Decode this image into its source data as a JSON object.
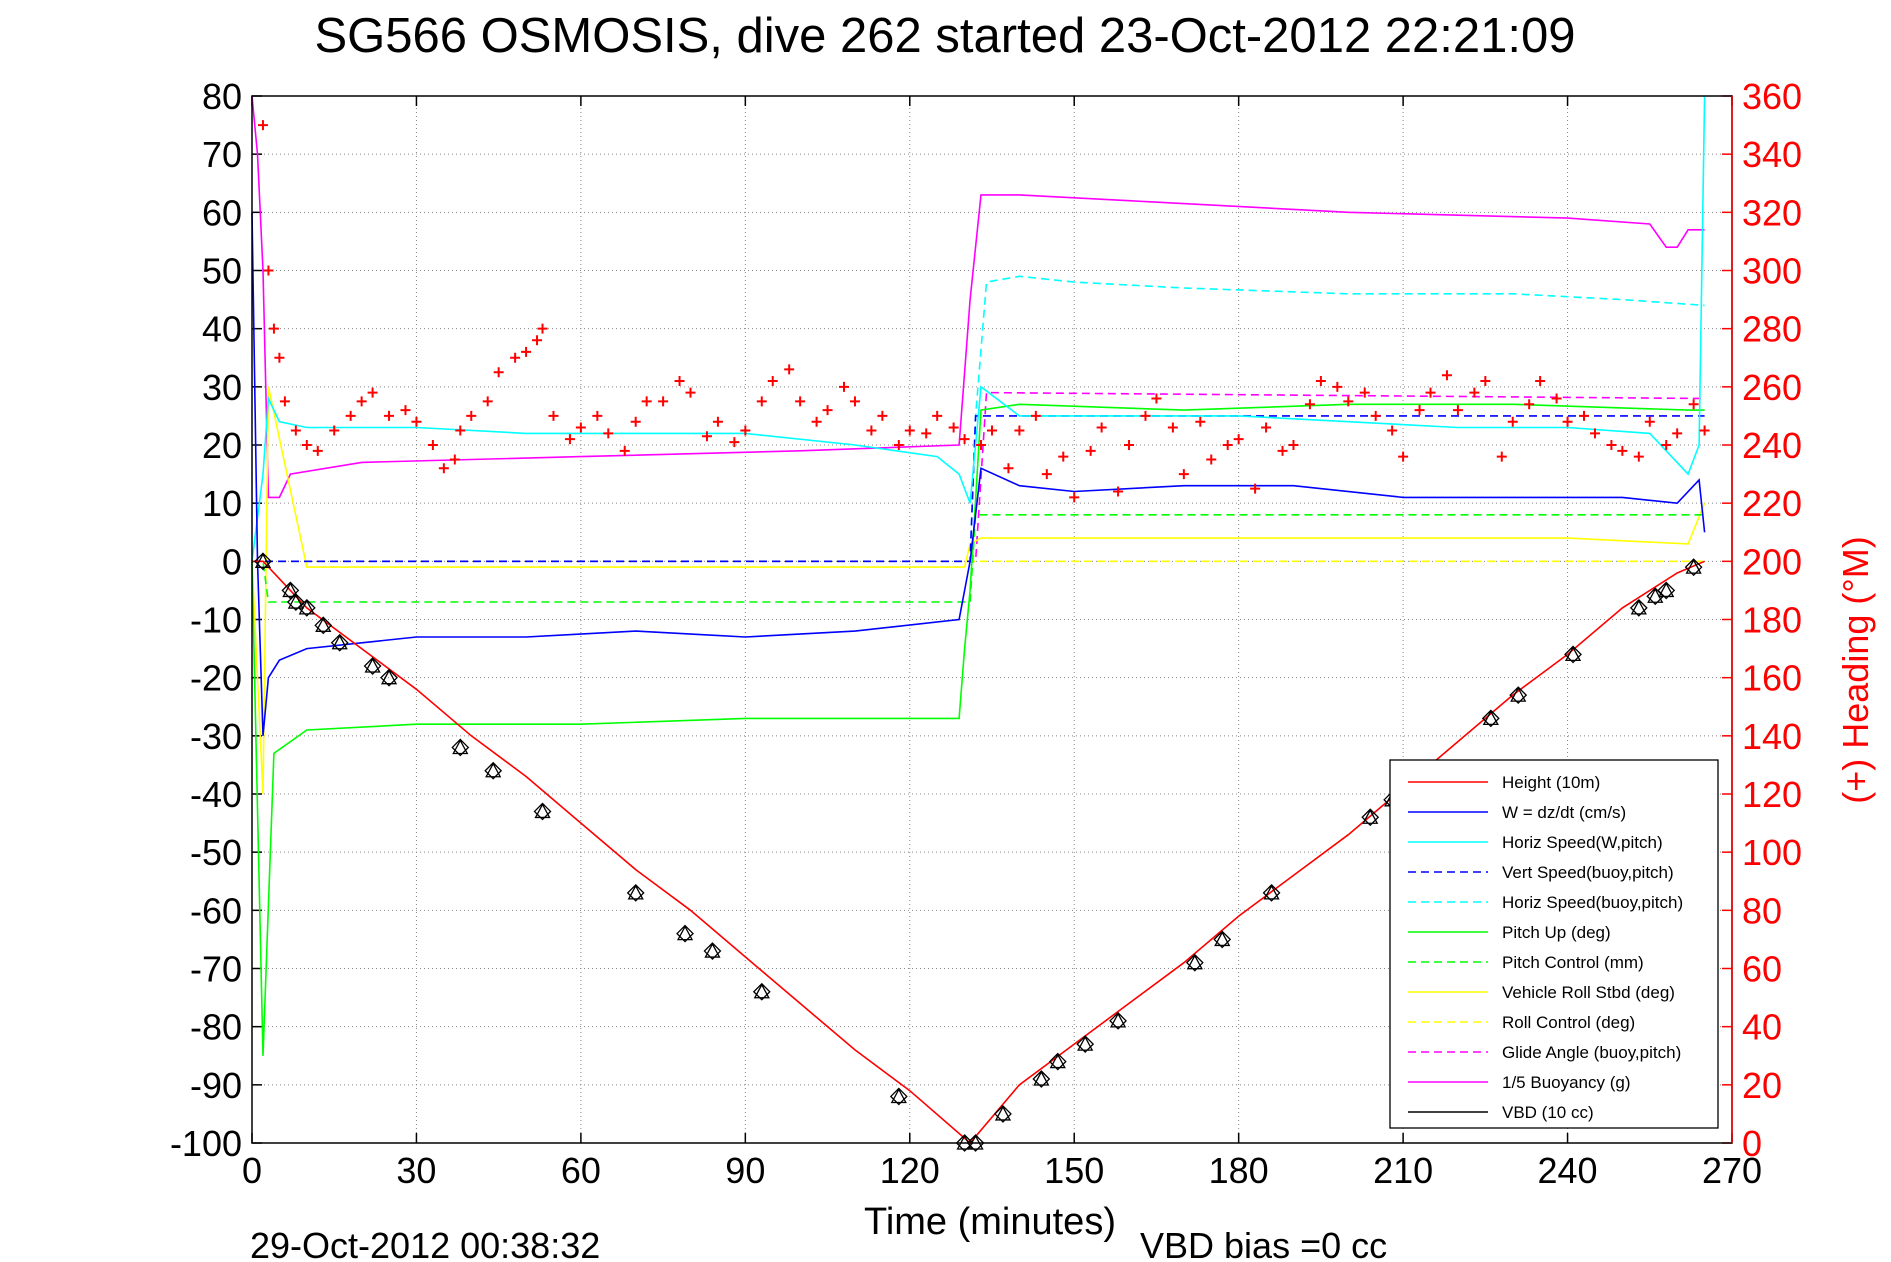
{
  "chart_data": {
    "type": "line",
    "title": "SG566 OSMOSIS, dive 262 started 23-Oct-2012 22:21:09",
    "xlabel": "Time (minutes)",
    "ylabel_right": "(+) Heading (°M)",
    "footer_left": "29-Oct-2012 00:38:32",
    "footer_right": "VBD bias =0 cc",
    "xlim": [
      0,
      270
    ],
    "ylim": [
      -100,
      80
    ],
    "ylim_right": [
      0,
      360
    ],
    "x_ticks": [
      0,
      30,
      60,
      90,
      120,
      150,
      180,
      210,
      240,
      270
    ],
    "y_ticks": [
      80,
      70,
      60,
      50,
      40,
      30,
      20,
      10,
      0,
      -10,
      -20,
      -30,
      -40,
      -50,
      -60,
      -70,
      -80,
      -90,
      -100
    ],
    "y_ticks_right": [
      360,
      340,
      320,
      300,
      280,
      260,
      240,
      220,
      200,
      180,
      160,
      140,
      120,
      100,
      80,
      60,
      40,
      20,
      0
    ],
    "grid": true,
    "legend_position": "bottom-right",
    "colors": {
      "height": "#ff0000",
      "w": "#0000ff",
      "horiz_speed": "#00ffff",
      "pitch": "#00ff00",
      "roll": "#ffff00",
      "glide": "#ff00ff",
      "buoyancy": "#ff00ff",
      "vbd": "#000000",
      "heading": "#ff0000"
    },
    "series": [
      {
        "name": "Height (10m)",
        "color": "#ff0000",
        "dash": false,
        "x": [
          0,
          2,
          10,
          20,
          30,
          40,
          50,
          60,
          70,
          80,
          90,
          100,
          110,
          120,
          131,
          140,
          150,
          160,
          170,
          180,
          190,
          200,
          210,
          220,
          230,
          240,
          250,
          260,
          265
        ],
        "y": [
          0,
          0,
          -8,
          -15,
          -22,
          -30,
          -37,
          -45,
          -53,
          -60,
          -68,
          -76,
          -84,
          -91,
          -100,
          -90,
          -83,
          -76,
          -69,
          -61,
          -54,
          -47,
          -39,
          -31,
          -23,
          -16,
          -8,
          -2,
          0
        ]
      },
      {
        "name": "W = dz/dt (cm/s)",
        "color": "#0000ff",
        "dash": false,
        "x": [
          0,
          1,
          2,
          3,
          5,
          10,
          20,
          30,
          50,
          70,
          90,
          110,
          129,
          131,
          133,
          140,
          150,
          170,
          190,
          210,
          230,
          250,
          260,
          264,
          265
        ],
        "y": [
          60,
          0,
          -30,
          -20,
          -17,
          -15,
          -14,
          -13,
          -13,
          -12,
          -13,
          -12,
          -10,
          0,
          16,
          13,
          12,
          13,
          13,
          11,
          11,
          11,
          10,
          14,
          5
        ]
      },
      {
        "name": "Horiz Speed(W,pitch)",
        "color": "#00ffff",
        "dash": false,
        "x": [
          0,
          2,
          3,
          5,
          10,
          20,
          30,
          50,
          70,
          90,
          110,
          125,
          129,
          131,
          133,
          140,
          160,
          180,
          200,
          220,
          240,
          255,
          262,
          264,
          265
        ],
        "y": [
          0,
          15,
          28,
          24,
          23,
          23,
          23,
          22,
          22,
          22,
          20,
          18,
          15,
          10,
          30,
          25,
          25,
          25,
          24,
          23,
          23,
          22,
          15,
          20,
          80
        ]
      },
      {
        "name": "Vert Speed(buoy,pitch)",
        "color": "#0000ff",
        "dash": true,
        "x": [
          0,
          2,
          131,
          132,
          262,
          265
        ],
        "y": [
          0,
          0,
          0,
          25,
          25,
          25
        ]
      },
      {
        "name": "Horiz Speed(buoy,pitch)",
        "color": "#00ffff",
        "dash": true,
        "x": [
          0,
          2,
          4,
          131,
          132,
          134,
          140,
          150,
          170,
          200,
          230,
          250,
          265
        ],
        "y": [
          0,
          0,
          0,
          0,
          25,
          48,
          49,
          48,
          47,
          46,
          46,
          45,
          44
        ]
      },
      {
        "name": "Pitch Up (deg)",
        "color": "#00ff00",
        "dash": false,
        "x": [
          0,
          2,
          4,
          10,
          30,
          60,
          90,
          110,
          129,
          130,
          131,
          133,
          140,
          170,
          200,
          230,
          262,
          265
        ],
        "y": [
          0,
          -85,
          -33,
          -29,
          -28,
          -28,
          -27,
          -27,
          -27,
          -15,
          -5,
          26,
          27,
          26,
          27,
          27,
          26,
          26
        ]
      },
      {
        "name": "Pitch Control (mm)",
        "color": "#00ff00",
        "dash": true,
        "x": [
          0,
          2,
          3,
          131,
          132,
          265
        ],
        "y": [
          0,
          0,
          -7,
          -7,
          8,
          8
        ]
      },
      {
        "name": "Vehicle Roll Stbd (deg)",
        "color": "#ffff00",
        "dash": false,
        "x": [
          0,
          2,
          3,
          10,
          20,
          40,
          60,
          80,
          100,
          120,
          130,
          131,
          133,
          150,
          180,
          210,
          240,
          262,
          265
        ],
        "y": [
          0,
          -40,
          30,
          -1,
          -1,
          -1,
          -1,
          -1,
          -1,
          -1,
          -1,
          3,
          4,
          4,
          4,
          4,
          4,
          3,
          10
        ]
      },
      {
        "name": "Roll Control (deg)",
        "color": "#ffff00",
        "dash": true,
        "x": [
          0,
          2,
          3,
          131,
          132,
          265
        ],
        "y": [
          0,
          0,
          0,
          0,
          0,
          0
        ]
      },
      {
        "name": "Glide Angle (buoy,pitch)",
        "color": "#ff00ff",
        "dash": true,
        "x": [
          0,
          2,
          3,
          131,
          132,
          134,
          265
        ],
        "y": [
          0,
          0,
          0,
          0,
          0,
          29,
          28
        ]
      },
      {
        "name": "1/5 Buoyancy (g)",
        "color": "#ff00ff",
        "dash": false,
        "x": [
          0,
          1,
          2,
          3,
          5,
          7,
          20,
          60,
          100,
          129,
          131,
          133,
          140,
          160,
          200,
          240,
          255,
          258,
          260,
          262,
          265
        ],
        "y": [
          80,
          70,
          50,
          11,
          11,
          15,
          17,
          18,
          19,
          20,
          45,
          63,
          63,
          62,
          60,
          59,
          58,
          54,
          54,
          57,
          57
        ]
      },
      {
        "name": "VBD (10 cc)",
        "color": "#000000",
        "dash": false,
        "x": [
          0,
          1,
          2,
          3,
          129,
          130,
          131,
          132,
          133,
          265
        ],
        "y": [
          62,
          25,
          -9,
          -9,
          -9,
          -5,
          2,
          9,
          10,
          10
        ]
      }
    ],
    "heading_series": {
      "name": "Heading",
      "color": "#ff0000",
      "marker": "+",
      "x": [
        2,
        3,
        4,
        5,
        6,
        8,
        10,
        12,
        15,
        18,
        20,
        22,
        25,
        28,
        30,
        33,
        35,
        37,
        38,
        40,
        43,
        45,
        48,
        50,
        52,
        53,
        55,
        58,
        60,
        63,
        65,
        68,
        70,
        72,
        75,
        78,
        80,
        83,
        85,
        88,
        90,
        93,
        95,
        98,
        100,
        103,
        105,
        108,
        110,
        113,
        115,
        118,
        120,
        123,
        125,
        128,
        130,
        133,
        135,
        138,
        140,
        143,
        145,
        148,
        150,
        153,
        155,
        158,
        160,
        163,
        165,
        168,
        170,
        173,
        175,
        178,
        180,
        183,
        185,
        188,
        190,
        193,
        195,
        198,
        200,
        203,
        205,
        208,
        210,
        213,
        215,
        218,
        220,
        223,
        225,
        228,
        230,
        233,
        235,
        238,
        240,
        243,
        245,
        248,
        250,
        253,
        255,
        258,
        260,
        263,
        265
      ],
      "y": [
        350,
        300,
        280,
        270,
        255,
        245,
        240,
        238,
        245,
        250,
        255,
        258,
        250,
        252,
        248,
        240,
        232,
        235,
        245,
        250,
        255,
        265,
        270,
        272,
        276,
        280,
        250,
        242,
        246,
        250,
        244,
        238,
        248,
        255,
        255,
        262,
        258,
        243,
        248,
        241,
        245,
        255,
        262,
        266,
        255,
        248,
        252,
        260,
        255,
        245,
        250,
        240,
        245,
        244,
        250,
        246,
        242,
        240,
        245,
        232,
        245,
        250,
        230,
        236,
        222,
        238,
        246,
        224,
        240,
        250,
        256,
        246,
        230,
        248,
        235,
        240,
        242,
        225,
        246,
        238,
        240,
        254,
        262,
        260,
        255,
        258,
        250,
        245,
        236,
        252,
        258,
        264,
        252,
        258,
        262,
        236,
        248,
        254,
        262,
        256,
        248,
        250,
        244,
        240,
        238,
        236,
        248,
        240,
        244,
        254,
        245
      ]
    },
    "markers": {
      "symbol": "triangle+diamond",
      "x": [
        2,
        7,
        8,
        10,
        13,
        16,
        22,
        25,
        38,
        44,
        53,
        70,
        79,
        84,
        93,
        118,
        130,
        132,
        137,
        144,
        147,
        152,
        158,
        172,
        177,
        186,
        204,
        208,
        226,
        231,
        241,
        253,
        256,
        258,
        263
      ],
      "y": [
        0,
        -5,
        -7,
        -8,
        -11,
        -14,
        -18,
        -20,
        -32,
        -36,
        -43,
        -57,
        -64,
        -67,
        -74,
        -92,
        -100,
        -100,
        -95,
        -89,
        -86,
        -83,
        -79,
        -69,
        -65,
        -57,
        -44,
        -41,
        -27,
        -23,
        -16,
        -8,
        -6,
        -5,
        -1
      ]
    }
  }
}
